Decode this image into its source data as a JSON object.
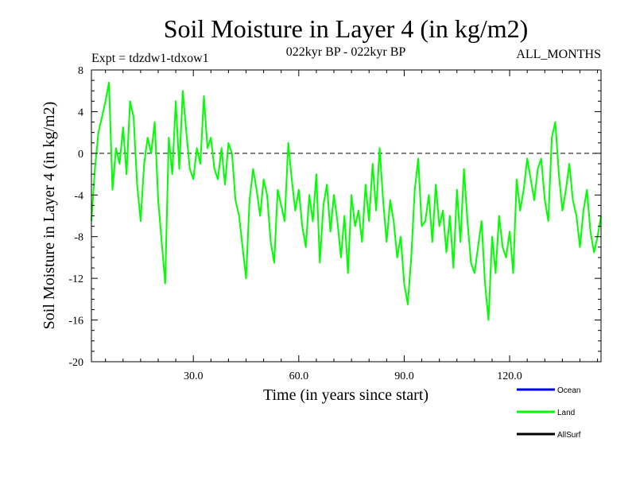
{
  "chart_data": {
    "type": "line",
    "title": "Soil Moisture in Layer 4 (in kg/m2)",
    "subtitle_left": "Expt = tdzdw1-tdxow1",
    "subtitle_center": "022kyr BP - 022kyr BP",
    "subtitle_right": "ALL_MONTHS",
    "xlabel": "Time (in years since start)",
    "ylabel": "Soil Moisture in Layer 4 (in kg/m2)",
    "xlim": [
      1,
      146
    ],
    "ylim": [
      -20,
      8
    ],
    "x_ticks": [
      30,
      60,
      90,
      120
    ],
    "x_tick_labels": [
      "30.0",
      "60.0",
      "90.0",
      "120.0"
    ],
    "y_ticks": [
      -20,
      -16,
      -12,
      -8,
      -4,
      0,
      4,
      8
    ],
    "y_tick_labels": [
      "-20",
      "-16",
      "-12",
      "-8",
      "-4",
      "0",
      "4",
      "8"
    ],
    "zero_line": 0,
    "legend": [
      {
        "name": "Ocean",
        "color": "#0000ff"
      },
      {
        "name": "Land",
        "color": "#00ff00"
      },
      {
        "name": "AllSurf",
        "color": "#000000"
      }
    ],
    "series": [
      {
        "name": "Land",
        "color": "#00ff00",
        "x": [
          1,
          2,
          3,
          4,
          5,
          6,
          7,
          8,
          9,
          10,
          11,
          12,
          13,
          14,
          15,
          16,
          17,
          18,
          19,
          20,
          21,
          22,
          23,
          24,
          25,
          26,
          27,
          28,
          29,
          30,
          31,
          32,
          33,
          34,
          35,
          36,
          37,
          38,
          39,
          40,
          41,
          42,
          43,
          44,
          45,
          46,
          47,
          48,
          49,
          50,
          51,
          52,
          53,
          54,
          55,
          56,
          57,
          58,
          59,
          60,
          61,
          62,
          63,
          64,
          65,
          66,
          67,
          68,
          69,
          70,
          71,
          72,
          73,
          74,
          75,
          76,
          77,
          78,
          79,
          80,
          81,
          82,
          83,
          84,
          85,
          86,
          87,
          88,
          89,
          90,
          91,
          92,
          93,
          94,
          95,
          96,
          97,
          98,
          99,
          100,
          101,
          102,
          103,
          104,
          105,
          106,
          107,
          108,
          109,
          110,
          111,
          112,
          113,
          114,
          115,
          116,
          117,
          118,
          119,
          120,
          121,
          122,
          123,
          124,
          125,
          126,
          127,
          128,
          129,
          130,
          131,
          132,
          133,
          134,
          135,
          136,
          137,
          138,
          139,
          140,
          141,
          142,
          143,
          144,
          145,
          146
        ],
        "values": [
          -6.5,
          -1.5,
          2.0,
          3.5,
          5.0,
          6.8,
          -3.5,
          0.5,
          -1.0,
          2.5,
          -2.0,
          5.0,
          3.5,
          -3.0,
          -6.5,
          -1.0,
          1.5,
          0.0,
          3.0,
          -4.5,
          -8.5,
          -12.5,
          1.5,
          -2.0,
          5.0,
          -1.5,
          6.0,
          2.0,
          -1.5,
          -2.5,
          0.5,
          -1.0,
          5.5,
          0.5,
          1.5,
          -1.5,
          -2.5,
          0.5,
          -3.0,
          1.0,
          0.0,
          -4.5,
          -6.0,
          -9.0,
          -12.0,
          -4.5,
          -1.5,
          -3.5,
          -6.0,
          -2.5,
          -4.0,
          -8.5,
          -10.5,
          -3.5,
          -5.0,
          -6.5,
          1.0,
          -2.5,
          -5.5,
          -3.5,
          -7.0,
          -9.0,
          -4.0,
          -6.5,
          -2.0,
          -10.5,
          -5.0,
          -3.0,
          -7.5,
          -4.0,
          -6.5,
          -10.0,
          -6.0,
          -11.5,
          -4.0,
          -7.0,
          -5.5,
          -8.5,
          -3.0,
          -6.5,
          -1.0,
          -5.5,
          0.5,
          -4.5,
          -8.5,
          -4.5,
          -6.5,
          -10.0,
          -8.0,
          -12.5,
          -14.5,
          -10.0,
          -3.5,
          -0.5,
          -7.0,
          -6.5,
          -4.0,
          -8.5,
          -3.0,
          -7.0,
          -5.5,
          -9.5,
          -6.0,
          -11.0,
          -3.5,
          -8.5,
          -1.5,
          -6.5,
          -10.5,
          -11.5,
          -9.0,
          -6.5,
          -12.5,
          -16.0,
          -8.0,
          -11.5,
          -6.0,
          -9.0,
          -10.0,
          -7.5,
          -11.5,
          -2.5,
          -5.5,
          -3.5,
          -0.5,
          -2.5,
          -4.5,
          -1.5,
          -0.5,
          -4.5,
          -6.5,
          1.5,
          3.0,
          -2.0,
          -5.5,
          -3.5,
          -1.0,
          -4.5,
          -6.0,
          -9.0,
          -5.5,
          -3.5,
          -7.5,
          -9.5,
          -8.0,
          -6.0
        ]
      }
    ]
  }
}
